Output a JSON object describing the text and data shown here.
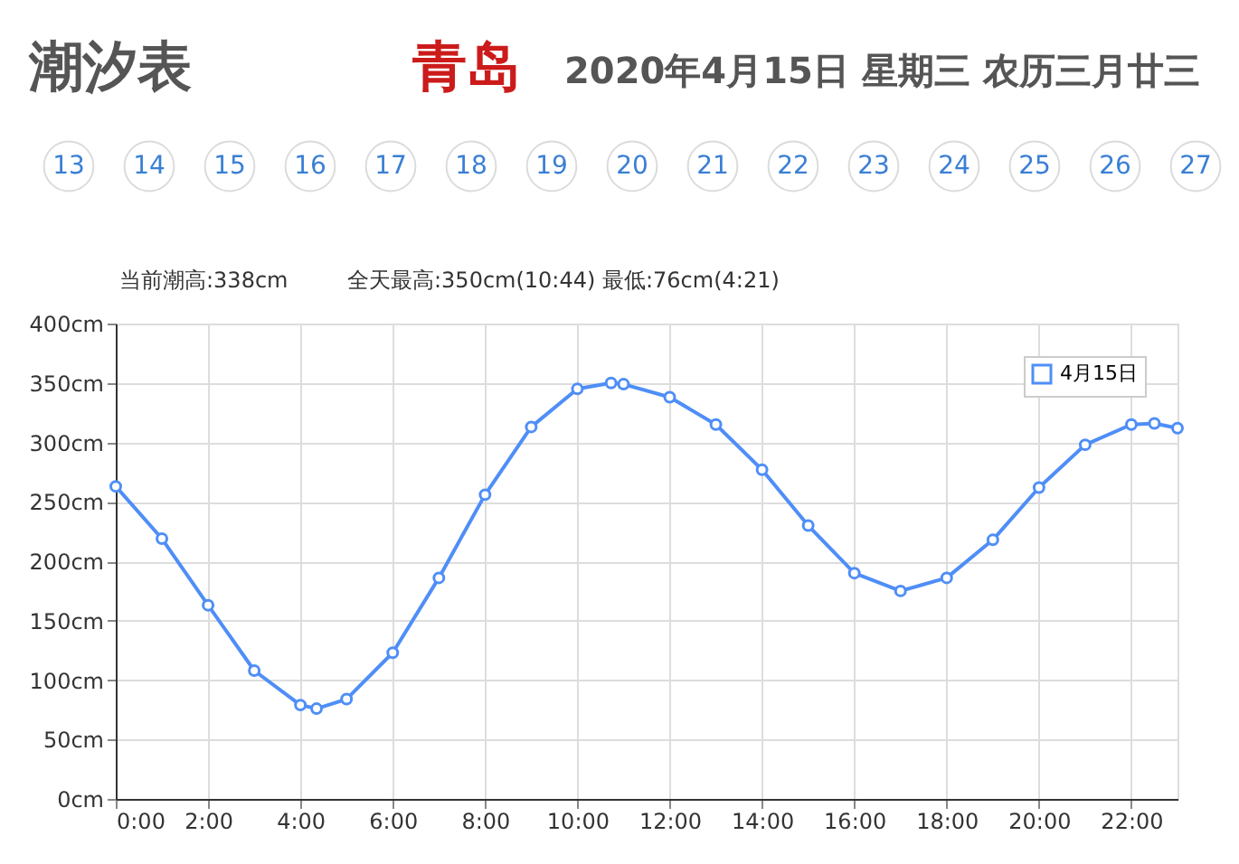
{
  "chart_data": {
    "type": "line",
    "title": "潮汐表",
    "subtitle": "青岛",
    "annotations": [
      "2020年4月15日 星期三 农历三月廿三",
      "13",
      "14",
      "15",
      "16",
      "17",
      "18",
      "19",
      "20",
      "21",
      "22",
      "23",
      "24",
      "25",
      "26",
      "27",
      "当前潮高:338cm",
      "全天最高:350cm(10:44) 最低:76cm(4:21)"
    ],
    "x": [
      0,
      1,
      2,
      3,
      4,
      4.35,
      5,
      6,
      7,
      8,
      9,
      10,
      10.73,
      11,
      12,
      13,
      14,
      15,
      16,
      17,
      18,
      19,
      20,
      21,
      22,
      22.5,
      23
    ],
    "series": [
      {
        "name": "4月15日",
        "color": "#4f8ef7",
        "values": [
          263,
          219,
          163,
          108,
          79,
          76,
          84,
          123,
          186,
          256,
          313,
          345,
          350,
          349,
          338,
          315,
          277,
          230,
          190,
          175,
          186,
          218,
          262,
          298,
          315,
          316,
          312
        ]
      }
    ],
    "xlim": [
      0,
      23
    ],
    "xticks": [
      {
        "value": 0,
        "label": "0:00"
      },
      {
        "value": 2,
        "label": "2:00"
      },
      {
        "value": 4,
        "label": "4:00"
      },
      {
        "value": 6,
        "label": "6:00"
      },
      {
        "value": 8,
        "label": "8:00"
      },
      {
        "value": 10,
        "label": "10:00"
      },
      {
        "value": 12,
        "label": "12:00"
      },
      {
        "value": 14,
        "label": "14:00"
      },
      {
        "value": 16,
        "label": "16:00"
      },
      {
        "value": 18,
        "label": "18:00"
      },
      {
        "value": 20,
        "label": "20:00"
      },
      {
        "value": 22,
        "label": "22:00"
      }
    ],
    "ylim": [
      0,
      400
    ],
    "yticks": [
      {
        "value": 0,
        "label": "0cm"
      },
      {
        "value": 50,
        "label": "50cm"
      },
      {
        "value": 100,
        "label": "100cm"
      },
      {
        "value": 150,
        "label": "150cm"
      },
      {
        "value": 200,
        "label": "200cm"
      },
      {
        "value": 250,
        "label": "250cm"
      },
      {
        "value": 300,
        "label": "300cm"
      },
      {
        "value": 350,
        "label": "350cm"
      },
      {
        "value": 400,
        "label": "400cm"
      }
    ],
    "grid": true,
    "legend": "top right",
    "marker": "circle",
    "line_style": "solid"
  }
}
